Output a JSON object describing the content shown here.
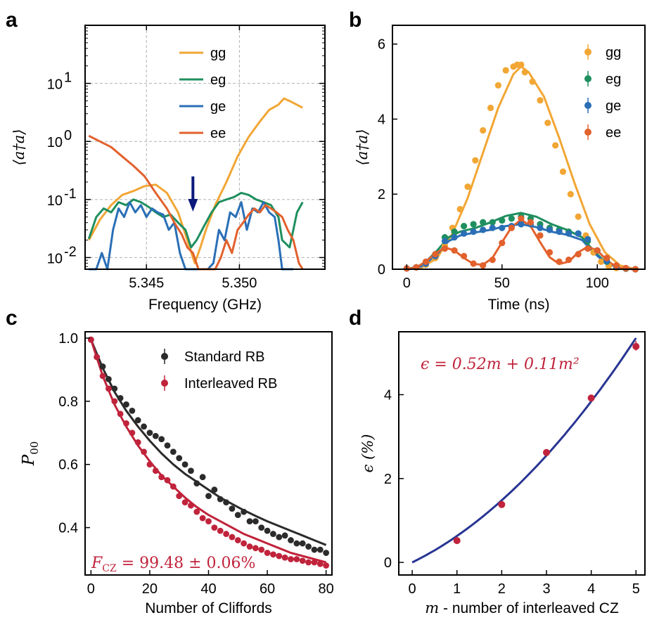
{
  "chart_data": [
    {
      "panel": "a",
      "type": "line",
      "xlabel": "Frequency (GHz)",
      "ylabel": "⟨a†a⟩",
      "yscale": "log",
      "xlim": [
        5.3417,
        5.3546
      ],
      "ylim": [
        0.0063,
        100
      ],
      "xticks": [
        5.345,
        5.35
      ],
      "xtick_labels": [
        "5.345",
        "5.350"
      ],
      "yticks": [
        0.01,
        0.1,
        1,
        10
      ],
      "ytick_labels": [
        "10",
        "10",
        "10",
        "10"
      ],
      "ytick_exponents": [
        "-2",
        "-1",
        "0",
        "1"
      ],
      "grid": true,
      "legend_position": "top-center",
      "annotation": "arrow pointing down at 5.3475",
      "series": [
        {
          "name": "gg",
          "color": "#f2a634",
          "x": [
            5.3419,
            5.3425,
            5.3431,
            5.3437,
            5.3443,
            5.3449,
            5.3455,
            5.3461,
            5.3467,
            5.3472,
            5.3476,
            5.3479,
            5.3482,
            5.3487,
            5.3493,
            5.3499,
            5.3505,
            5.3511,
            5.3516,
            5.3521,
            5.3524,
            5.3528,
            5.3534
          ],
          "y": [
            0.02,
            0.045,
            0.08,
            0.12,
            0.14,
            0.17,
            0.18,
            0.13,
            0.06,
            0.02,
            0.008,
            0.015,
            0.03,
            0.08,
            0.2,
            0.55,
            1.2,
            2.2,
            3.5,
            4.3,
            5.5,
            4.8,
            3.8
          ]
        },
        {
          "name": "eg",
          "color": "#1f8f5f",
          "x": [
            5.3419,
            5.3423,
            5.3427,
            5.3431,
            5.3435,
            5.3439,
            5.3443,
            5.3447,
            5.3451,
            5.3455,
            5.3459,
            5.3463,
            5.3467,
            5.3471,
            5.3474,
            5.3477,
            5.3481,
            5.3485,
            5.3489,
            5.3493,
            5.3497,
            5.3501,
            5.3505,
            5.3509,
            5.3513,
            5.3517,
            5.3521,
            5.3523,
            5.3527,
            5.3531,
            5.3534
          ],
          "y": [
            0.021,
            0.05,
            0.07,
            0.06,
            0.09,
            0.08,
            0.1,
            0.09,
            0.075,
            0.06,
            0.05,
            0.055,
            0.04,
            0.03,
            0.015,
            0.02,
            0.035,
            0.06,
            0.09,
            0.1,
            0.11,
            0.13,
            0.12,
            0.1,
            0.09,
            0.08,
            0.05,
            0.02,
            0.015,
            0.06,
            0.09
          ]
        },
        {
          "name": "ge",
          "color": "#2a6fb6",
          "x": [
            5.3419,
            5.3423,
            5.3426,
            5.3429,
            5.3432,
            5.3435,
            5.3438,
            5.3441,
            5.3444,
            5.3447,
            5.345,
            5.3453,
            5.3456,
            5.3459,
            5.3462,
            5.3465,
            5.3468,
            5.3471,
            5.3474,
            5.3477,
            5.348,
            5.3483,
            5.3486,
            5.3489,
            5.3492,
            5.3495,
            5.3498,
            5.3501,
            5.3504,
            5.3507,
            5.351,
            5.3513,
            5.3516,
            5.3519,
            5.3521,
            5.3523,
            5.3526,
            5.3529
          ],
          "y": [
            0.005,
            0.005,
            0.012,
            0.004,
            0.03,
            0.07,
            0.05,
            0.09,
            0.06,
            0.08,
            0.05,
            0.07,
            0.06,
            0.055,
            0.03,
            0.04,
            0.012,
            0.004,
            0.004,
            0.004,
            0.004,
            0.004,
            0.008,
            0.03,
            0.02,
            0.06,
            0.05,
            0.09,
            0.03,
            0.07,
            0.06,
            0.09,
            0.06,
            0.05,
            0.02,
            0.004,
            0.004,
            0.004
          ]
        },
        {
          "name": "ee",
          "color": "#e2612d",
          "x": [
            5.3419,
            5.3425,
            5.3431,
            5.3437,
            5.3443,
            5.3449,
            5.3455,
            5.3461,
            5.3465,
            5.3469,
            5.3472,
            5.3475,
            5.3478,
            5.3481,
            5.3484,
            5.3487,
            5.349,
            5.3493,
            5.3496,
            5.3499,
            5.3502,
            5.3505,
            5.3508,
            5.3511,
            5.3514,
            5.3517,
            5.352,
            5.3523,
            5.3526,
            5.3529,
            5.3532,
            5.3534
          ],
          "y": [
            1.25,
            1.0,
            0.8,
            0.55,
            0.38,
            0.25,
            0.13,
            0.07,
            0.04,
            0.025,
            0.015,
            0.012,
            0.004,
            0.004,
            0.004,
            0.004,
            0.01,
            0.02,
            0.012,
            0.03,
            0.04,
            0.055,
            0.07,
            0.06,
            0.08,
            0.07,
            0.06,
            0.05,
            0.03,
            0.02,
            0.008,
            0.004
          ]
        }
      ]
    },
    {
      "panel": "b",
      "type": "scatter",
      "xlabel": "Time (ns)",
      "ylabel": "⟨a†a⟩",
      "xlim": [
        -7.5,
        125
      ],
      "ylim": [
        0,
        6.5
      ],
      "xticks": [
        0,
        50,
        100
      ],
      "yticks": [
        0,
        2,
        4,
        6
      ],
      "grid": false,
      "legend_position": "top-right",
      "series": [
        {
          "name": "gg",
          "color": "#f2a634",
          "x": [
            0,
            5,
            10,
            15,
            20,
            24,
            28,
            32,
            36,
            40,
            44,
            48,
            52,
            56,
            58,
            60,
            62,
            66,
            70,
            74,
            78,
            82,
            86,
            90,
            94,
            98,
            102,
            106,
            110,
            115,
            120
          ],
          "y": [
            0.02,
            0.05,
            0.12,
            0.3,
            0.62,
            1.1,
            1.6,
            2.2,
            2.9,
            3.7,
            4.3,
            4.9,
            5.3,
            5.4,
            5.45,
            5.45,
            5.25,
            5.0,
            4.5,
            3.9,
            3.3,
            2.6,
            2.0,
            1.4,
            0.9,
            0.45,
            0.2,
            0.08,
            0.03,
            0.01,
            0.0
          ],
          "fit_x": [
            0,
            8,
            16,
            24,
            32,
            40,
            48,
            56,
            60,
            64,
            72,
            80,
            88,
            96,
            104,
            112,
            120
          ],
          "fit_y": [
            0.0,
            0.05,
            0.3,
            0.95,
            1.9,
            3.1,
            4.3,
            5.2,
            5.4,
            5.25,
            4.6,
            3.5,
            2.3,
            1.2,
            0.45,
            0.1,
            0.0
          ]
        },
        {
          "name": "eg",
          "color": "#1f8f5f",
          "x": [
            0,
            5,
            10,
            15,
            20,
            25,
            30,
            35,
            40,
            45,
            50,
            55,
            60,
            65,
            70,
            75,
            80,
            85,
            90,
            95,
            100,
            105,
            110,
            115,
            120
          ],
          "y": [
            0.02,
            0.05,
            0.15,
            0.4,
            0.85,
            1.0,
            1.15,
            1.2,
            1.25,
            1.25,
            1.3,
            1.35,
            1.4,
            1.35,
            1.2,
            1.1,
            1.05,
            1.0,
            0.95,
            0.75,
            0.5,
            0.2,
            0.07,
            0.02,
            0.0
          ],
          "fit_x": [
            0,
            8,
            16,
            22,
            28,
            36,
            44,
            52,
            60,
            68,
            76,
            84,
            92,
            98,
            104,
            112,
            120
          ],
          "fit_y": [
            0.0,
            0.1,
            0.5,
            0.85,
            1.0,
            1.1,
            1.25,
            1.42,
            1.5,
            1.4,
            1.2,
            1.05,
            0.85,
            0.5,
            0.2,
            0.03,
            0.0
          ]
        },
        {
          "name": "ge",
          "color": "#2a6fb6",
          "x": [
            0,
            5,
            10,
            15,
            20,
            25,
            30,
            35,
            40,
            45,
            50,
            55,
            60,
            65,
            70,
            75,
            80,
            85,
            90,
            95,
            100,
            105,
            110,
            115,
            120
          ],
          "y": [
            0.02,
            0.05,
            0.15,
            0.35,
            0.75,
            0.85,
            0.95,
            1.0,
            1.05,
            1.1,
            1.1,
            1.15,
            1.2,
            1.2,
            1.1,
            1.05,
            1.0,
            0.95,
            0.95,
            0.8,
            0.5,
            0.22,
            0.07,
            0.02,
            0.0
          ],
          "fit_x": [
            0,
            8,
            16,
            22,
            28,
            36,
            44,
            52,
            60,
            68,
            76,
            84,
            92,
            98,
            104,
            112,
            120
          ],
          "fit_y": [
            0.0,
            0.08,
            0.4,
            0.75,
            0.9,
            0.98,
            1.05,
            1.15,
            1.2,
            1.12,
            1.0,
            0.92,
            0.78,
            0.45,
            0.18,
            0.03,
            0.0
          ]
        },
        {
          "name": "ee",
          "color": "#e2612d",
          "x": [
            0,
            5,
            10,
            15,
            20,
            25,
            30,
            35,
            40,
            45,
            50,
            55,
            60,
            65,
            70,
            75,
            80,
            85,
            90,
            95,
            100,
            105,
            110,
            115,
            120
          ],
          "y": [
            0.02,
            0.05,
            0.2,
            0.4,
            0.55,
            0.5,
            0.35,
            0.15,
            0.1,
            0.25,
            0.7,
            1.1,
            1.35,
            1.25,
            0.9,
            0.45,
            0.2,
            0.25,
            0.4,
            0.55,
            0.5,
            0.3,
            0.1,
            0.03,
            0.0
          ],
          "fit_x": [
            0,
            5,
            10,
            15,
            20,
            25,
            30,
            35,
            40,
            45,
            50,
            55,
            60,
            65,
            70,
            75,
            80,
            85,
            90,
            95,
            100,
            105,
            110,
            115,
            120
          ],
          "fit_y": [
            0.0,
            0.05,
            0.2,
            0.42,
            0.58,
            0.5,
            0.3,
            0.14,
            0.12,
            0.3,
            0.72,
            1.12,
            1.32,
            1.15,
            0.72,
            0.32,
            0.14,
            0.2,
            0.45,
            0.6,
            0.5,
            0.24,
            0.06,
            0.01,
            0.0
          ]
        }
      ]
    },
    {
      "panel": "c",
      "type": "scatter",
      "xlabel": "Number of Cliffords",
      "ylabel": "P",
      "ylabel_sub": "00",
      "xlim": [
        -2,
        82
      ],
      "ylim": [
        0.25,
        1.02
      ],
      "xticks": [
        0,
        20,
        40,
        60,
        80
      ],
      "yticks": [
        0.4,
        0.6,
        0.8,
        1.0
      ],
      "ytick_labels": [
        "0.4",
        "0.6",
        "0.8",
        "1.0"
      ],
      "grid": false,
      "legend_position": "top-right",
      "annotation": "F_CZ = 99.48 ± 0.06%",
      "series": [
        {
          "name": "Standard RB",
          "color": "#2b2b2b",
          "x": [
            0,
            2,
            4,
            6,
            8,
            10,
            12,
            14,
            16,
            18,
            20,
            22,
            24,
            26,
            28,
            30,
            32,
            34,
            36,
            38,
            40,
            42,
            44,
            46,
            48,
            50,
            52,
            54,
            56,
            58,
            60,
            62,
            64,
            66,
            68,
            70,
            72,
            74,
            76,
            78,
            80
          ],
          "y": [
            0.995,
            0.94,
            0.91,
            0.87,
            0.84,
            0.81,
            0.79,
            0.77,
            0.74,
            0.72,
            0.7,
            0.69,
            0.68,
            0.66,
            0.64,
            0.62,
            0.6,
            0.58,
            0.54,
            0.56,
            0.5,
            0.52,
            0.49,
            0.48,
            0.46,
            0.44,
            0.45,
            0.42,
            0.42,
            0.4,
            0.39,
            0.38,
            0.37,
            0.375,
            0.36,
            0.35,
            0.35,
            0.34,
            0.33,
            0.33,
            0.32
          ],
          "fit_x": [
            0,
            4,
            8,
            12,
            16,
            20,
            24,
            28,
            32,
            36,
            40,
            44,
            48,
            52,
            56,
            60,
            64,
            68,
            72,
            76,
            80
          ],
          "fit_y": [
            0.995,
            0.905,
            0.83,
            0.77,
            0.72,
            0.675,
            0.635,
            0.6,
            0.57,
            0.545,
            0.52,
            0.495,
            0.475,
            0.455,
            0.437,
            0.42,
            0.405,
            0.39,
            0.375,
            0.36,
            0.345
          ]
        },
        {
          "name": "Interleaved RB",
          "color": "#c0233b",
          "x": [
            0,
            2,
            4,
            6,
            8,
            10,
            12,
            14,
            16,
            18,
            20,
            22,
            24,
            26,
            28,
            30,
            32,
            34,
            36,
            38,
            40,
            42,
            44,
            46,
            48,
            50,
            52,
            54,
            56,
            58,
            60,
            62,
            64,
            66,
            68,
            70,
            72,
            74,
            76,
            78,
            80
          ],
          "y": [
            0.995,
            0.94,
            0.88,
            0.84,
            0.8,
            0.76,
            0.73,
            0.7,
            0.67,
            0.64,
            0.6,
            0.58,
            0.56,
            0.55,
            0.53,
            0.5,
            0.48,
            0.47,
            0.45,
            0.43,
            0.42,
            0.4,
            0.39,
            0.38,
            0.37,
            0.36,
            0.35,
            0.34,
            0.335,
            0.33,
            0.32,
            0.315,
            0.31,
            0.305,
            0.3,
            0.3,
            0.295,
            0.29,
            0.29,
            0.285,
            0.28
          ],
          "fit_x": [
            0,
            4,
            8,
            12,
            16,
            20,
            24,
            28,
            32,
            36,
            40,
            44,
            48,
            52,
            56,
            60,
            64,
            68,
            72,
            76,
            80
          ],
          "fit_y": [
            0.995,
            0.88,
            0.79,
            0.72,
            0.66,
            0.61,
            0.565,
            0.53,
            0.495,
            0.465,
            0.44,
            0.42,
            0.4,
            0.38,
            0.365,
            0.35,
            0.335,
            0.32,
            0.31,
            0.3,
            0.29
          ]
        }
      ]
    },
    {
      "panel": "d",
      "type": "scatter",
      "xlabel_italic": "m",
      "xlabel": " - number of interleaved CZ",
      "ylabel": "ϵ (%)",
      "xlim": [
        -0.3,
        5.2
      ],
      "ylim": [
        -0.3,
        5.5
      ],
      "xticks": [
        0,
        1,
        2,
        3,
        4,
        5
      ],
      "yticks": [
        0,
        2,
        4
      ],
      "grid": false,
      "annotation": "ϵ = 0.52m + 0.11m²",
      "fit_a": 0.52,
      "fit_b": 0.11,
      "fit_color": "#283593",
      "points_color": "#c0233b",
      "x": [
        1,
        2,
        3,
        4,
        5
      ],
      "y": [
        0.52,
        1.38,
        2.62,
        3.92,
        5.15
      ]
    }
  ],
  "panel_labels": {
    "a": "a",
    "b": "b",
    "c": "c",
    "d": "d"
  },
  "annotations": {
    "fcz_label": "F",
    "fcz_sub": "CZ",
    "fcz_value": " = 99.48 ± 0.06%",
    "eps_formula": "ϵ = 0.52m + 0.11m²"
  }
}
